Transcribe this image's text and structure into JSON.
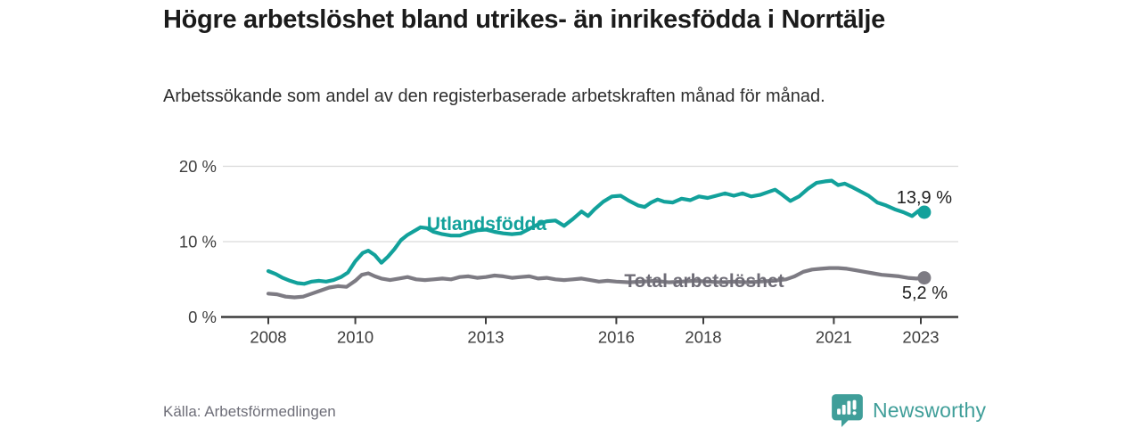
{
  "header": {
    "title": "Högre arbetslöshet bland utrikes- än inrikesfödda i Norrtälje",
    "subtitle": "Arbetssökande som andel av den registerbaserade arbetskraften månad för månad."
  },
  "footer": {
    "source": "Källa: Arbetsförmedlingen",
    "brand_name": "Newsworthy",
    "brand_logo_icon": "speech-bubble-bar-chart-icon"
  },
  "colors": {
    "series_foreign": "#12a19b",
    "series_total": "#7d7b83",
    "series_total_label": "#6f6d77",
    "axis": "#3d3d3d",
    "grid": "#d9d9d9",
    "brand": "#3f9e99"
  },
  "chart_data": {
    "type": "line",
    "title": "Högre arbetslöshet bland utrikes- än inrikesfödda i Norrtälje",
    "xlabel": "",
    "ylabel": "",
    "ylim": [
      0,
      20
    ],
    "xlim": [
      2007,
      2023.6
    ],
    "grid": "horizontal",
    "legend_position": "inline-labels",
    "yticks": [
      "0 %",
      "10 %",
      "20 %"
    ],
    "ytick_values": [
      0,
      10,
      20
    ],
    "xticks": [
      "2008",
      "2010",
      "2013",
      "2016",
      "2018",
      "2021",
      "2023"
    ],
    "xtick_values": [
      2008,
      2010,
      2013,
      2016,
      2018,
      2021,
      2023
    ],
    "series": [
      {
        "name": "Utlandsfödda",
        "end_label": "13,9 %",
        "end_value": 13.9,
        "points": [
          [
            2008.0,
            6.1
          ],
          [
            2008.17,
            5.7
          ],
          [
            2008.33,
            5.2
          ],
          [
            2008.5,
            4.8
          ],
          [
            2008.67,
            4.5
          ],
          [
            2008.83,
            4.4
          ],
          [
            2009.0,
            4.7
          ],
          [
            2009.17,
            4.8
          ],
          [
            2009.33,
            4.7
          ],
          [
            2009.5,
            4.9
          ],
          [
            2009.67,
            5.3
          ],
          [
            2009.83,
            5.9
          ],
          [
            2010.0,
            7.4
          ],
          [
            2010.17,
            8.5
          ],
          [
            2010.3,
            8.8
          ],
          [
            2010.45,
            8.2
          ],
          [
            2010.6,
            7.2
          ],
          [
            2010.75,
            8.0
          ],
          [
            2010.9,
            9.0
          ],
          [
            2011.05,
            10.2
          ],
          [
            2011.2,
            10.9
          ],
          [
            2011.35,
            11.4
          ],
          [
            2011.5,
            11.9
          ],
          [
            2011.65,
            11.8
          ],
          [
            2011.8,
            11.3
          ],
          [
            2012.0,
            11.0
          ],
          [
            2012.2,
            10.8
          ],
          [
            2012.4,
            10.8
          ],
          [
            2012.6,
            11.2
          ],
          [
            2012.8,
            11.5
          ],
          [
            2013.0,
            11.6
          ],
          [
            2013.2,
            11.3
          ],
          [
            2013.4,
            11.1
          ],
          [
            2013.6,
            11.0
          ],
          [
            2013.8,
            11.1
          ],
          [
            2014.0,
            11.7
          ],
          [
            2014.2,
            12.3
          ],
          [
            2014.4,
            12.7
          ],
          [
            2014.6,
            12.8
          ],
          [
            2014.8,
            12.1
          ],
          [
            2015.0,
            13.0
          ],
          [
            2015.2,
            14.0
          ],
          [
            2015.35,
            13.4
          ],
          [
            2015.5,
            14.3
          ],
          [
            2015.7,
            15.3
          ],
          [
            2015.9,
            16.0
          ],
          [
            2016.1,
            16.1
          ],
          [
            2016.3,
            15.4
          ],
          [
            2016.5,
            14.8
          ],
          [
            2016.65,
            14.6
          ],
          [
            2016.8,
            15.2
          ],
          [
            2016.95,
            15.6
          ],
          [
            2017.1,
            15.3
          ],
          [
            2017.3,
            15.2
          ],
          [
            2017.5,
            15.7
          ],
          [
            2017.7,
            15.5
          ],
          [
            2017.9,
            16.0
          ],
          [
            2018.1,
            15.8
          ],
          [
            2018.3,
            16.1
          ],
          [
            2018.5,
            16.4
          ],
          [
            2018.7,
            16.1
          ],
          [
            2018.9,
            16.4
          ],
          [
            2019.1,
            16.0
          ],
          [
            2019.3,
            16.2
          ],
          [
            2019.5,
            16.6
          ],
          [
            2019.65,
            16.9
          ],
          [
            2019.8,
            16.3
          ],
          [
            2020.0,
            15.4
          ],
          [
            2020.2,
            16.0
          ],
          [
            2020.4,
            17.0
          ],
          [
            2020.6,
            17.8
          ],
          [
            2020.8,
            18.0
          ],
          [
            2020.95,
            18.1
          ],
          [
            2021.1,
            17.5
          ],
          [
            2021.25,
            17.7
          ],
          [
            2021.4,
            17.3
          ],
          [
            2021.6,
            16.7
          ],
          [
            2021.8,
            16.1
          ],
          [
            2022.0,
            15.2
          ],
          [
            2022.2,
            14.8
          ],
          [
            2022.4,
            14.3
          ],
          [
            2022.6,
            13.9
          ],
          [
            2022.8,
            13.4
          ],
          [
            2022.95,
            14.1
          ],
          [
            2023.08,
            13.9
          ]
        ]
      },
      {
        "name": "Total arbetslöshet",
        "end_label": "5,2 %",
        "end_value": 5.2,
        "points": [
          [
            2008.0,
            3.1
          ],
          [
            2008.2,
            3.0
          ],
          [
            2008.4,
            2.7
          ],
          [
            2008.6,
            2.6
          ],
          [
            2008.8,
            2.7
          ],
          [
            2009.0,
            3.1
          ],
          [
            2009.2,
            3.5
          ],
          [
            2009.4,
            3.9
          ],
          [
            2009.6,
            4.1
          ],
          [
            2009.8,
            4.0
          ],
          [
            2010.0,
            4.8
          ],
          [
            2010.15,
            5.6
          ],
          [
            2010.3,
            5.8
          ],
          [
            2010.45,
            5.4
          ],
          [
            2010.6,
            5.1
          ],
          [
            2010.8,
            4.9
          ],
          [
            2011.0,
            5.1
          ],
          [
            2011.2,
            5.3
          ],
          [
            2011.4,
            5.0
          ],
          [
            2011.6,
            4.9
          ],
          [
            2011.8,
            5.0
          ],
          [
            2012.0,
            5.1
          ],
          [
            2012.2,
            5.0
          ],
          [
            2012.4,
            5.3
          ],
          [
            2012.6,
            5.4
          ],
          [
            2012.8,
            5.2
          ],
          [
            2013.0,
            5.3
          ],
          [
            2013.2,
            5.5
          ],
          [
            2013.4,
            5.4
          ],
          [
            2013.6,
            5.2
          ],
          [
            2013.8,
            5.3
          ],
          [
            2014.0,
            5.4
          ],
          [
            2014.2,
            5.1
          ],
          [
            2014.4,
            5.2
          ],
          [
            2014.6,
            5.0
          ],
          [
            2014.8,
            4.9
          ],
          [
            2015.0,
            5.0
          ],
          [
            2015.2,
            5.1
          ],
          [
            2015.4,
            4.9
          ],
          [
            2015.6,
            4.7
          ],
          [
            2015.8,
            4.8
          ],
          [
            2016.0,
            4.7
          ],
          [
            2016.3,
            4.6
          ],
          [
            2016.6,
            4.7
          ],
          [
            2016.9,
            4.8
          ],
          [
            2017.2,
            4.6
          ],
          [
            2017.5,
            4.7
          ],
          [
            2017.8,
            4.8
          ],
          [
            2018.1,
            4.7
          ],
          [
            2018.4,
            4.6
          ],
          [
            2018.7,
            4.7
          ],
          [
            2019.0,
            4.6
          ],
          [
            2019.3,
            4.7
          ],
          [
            2019.6,
            4.8
          ],
          [
            2019.9,
            5.0
          ],
          [
            2020.1,
            5.4
          ],
          [
            2020.3,
            6.0
          ],
          [
            2020.5,
            6.3
          ],
          [
            2020.7,
            6.4
          ],
          [
            2020.9,
            6.5
          ],
          [
            2021.1,
            6.5
          ],
          [
            2021.3,
            6.4
          ],
          [
            2021.5,
            6.2
          ],
          [
            2021.7,
            6.0
          ],
          [
            2021.9,
            5.8
          ],
          [
            2022.1,
            5.6
          ],
          [
            2022.3,
            5.5
          ],
          [
            2022.5,
            5.4
          ],
          [
            2022.7,
            5.2
          ],
          [
            2022.9,
            5.1
          ],
          [
            2023.08,
            5.2
          ]
        ]
      }
    ]
  }
}
